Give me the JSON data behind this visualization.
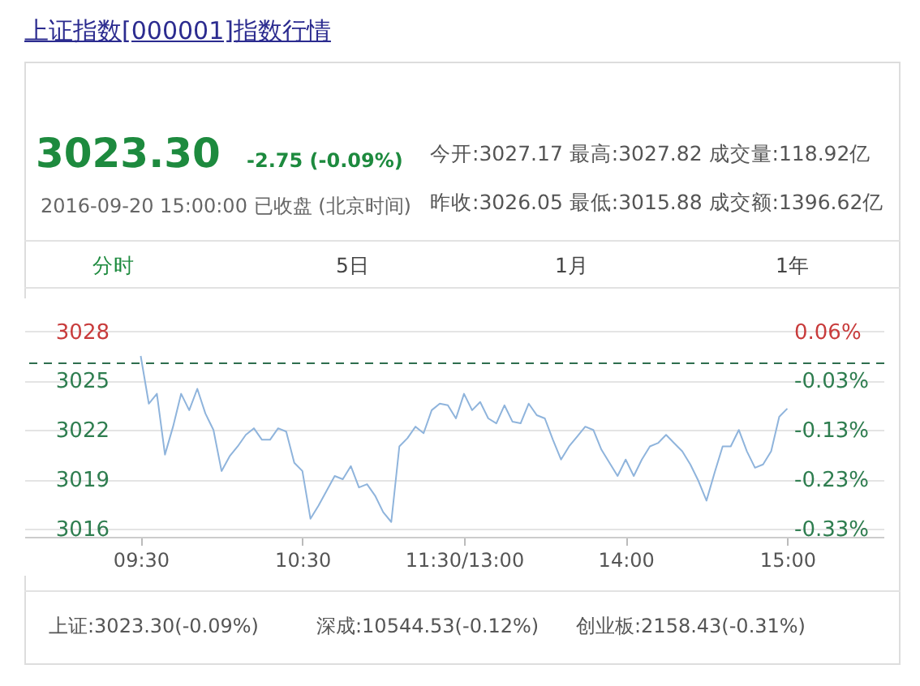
{
  "chart_data": {
    "type": "line",
    "title": "上证指数[000001]指数行情",
    "annotations": [
      "3023.30",
      "-2.75 (-0.09%)",
      "2016-09-20 15:00:00 已收盘 (北京时间)",
      "今开:3027.17  最高:3027.82  成交量:118.92亿",
      "昨收:3026.05  最低:3015.88  成交额:1396.62亿",
      "分时",
      "5日",
      "1月",
      "1年",
      "上证:3023.30(-0.09%)",
      "深成:10544.53(-0.12%)",
      "创业板:2158.43(-0.31%)"
    ],
    "categories": [
      "09:30",
      null,
      null,
      null,
      null,
      null,
      null,
      null,
      null,
      null,
      null,
      null,
      null,
      null,
      null,
      null,
      null,
      null,
      null,
      null,
      "10:30",
      null,
      null,
      null,
      null,
      null,
      null,
      null,
      null,
      null,
      null,
      null,
      null,
      null,
      null,
      null,
      null,
      null,
      null,
      null,
      "11:30/13:00",
      null,
      null,
      null,
      null,
      null,
      null,
      null,
      null,
      null,
      null,
      null,
      null,
      null,
      null,
      null,
      null,
      null,
      null,
      null,
      "14:00",
      null,
      null,
      null,
      null,
      null,
      null,
      null,
      null,
      null,
      null,
      null,
      null,
      null,
      null,
      null,
      null,
      null,
      null,
      null,
      "15:00"
    ],
    "series": [
      {
        "color": "#8fb4dc",
        "values": [
          3026.5,
          3023.6,
          3024.2,
          3020.5,
          3022.2,
          3024.2,
          3023.2,
          3024.5,
          3023.0,
          3022.0,
          3019.5,
          3020.4,
          3021.0,
          3021.7,
          3022.1,
          3021.4,
          3021.4,
          3022.1,
          3021.9,
          3020.0,
          3019.5,
          3016.6,
          3017.4,
          3018.3,
          3019.2,
          3019.0,
          3019.8,
          3018.5,
          3018.7,
          3018.0,
          3017.0,
          3016.4,
          3021.0,
          3021.5,
          3022.2,
          3021.8,
          3023.2,
          3023.6,
          3023.5,
          3022.7,
          3024.2,
          3023.2,
          3023.7,
          3022.7,
          3022.4,
          3023.5,
          3022.5,
          3022.4,
          3023.6,
          3022.9,
          3022.7,
          3021.4,
          3020.2,
          3021.0,
          3021.6,
          3022.2,
          3022.0,
          3020.8,
          3020.0,
          3019.2,
          3020.2,
          3019.2,
          3020.2,
          3021.0,
          3021.2,
          3021.7,
          3021.2,
          3020.7,
          3019.9,
          3018.9,
          3017.7,
          3019.4,
          3021.0,
          3021.0,
          3022.0,
          3020.7,
          3019.7,
          3019.9,
          3020.7,
          3022.8,
          3023.3
        ]
      }
    ],
    "ylim": [
      3015.5,
      3030
    ],
    "yticks": [
      3016,
      3019,
      3022,
      3025,
      3028
    ],
    "y2lim": [
      -0.3486,
      0.1305
    ],
    "y2ticks": [
      {
        "value": -0.3321,
        "label": "-0.33%"
      },
      {
        "value": -0.233,
        "label": "-0.23%"
      },
      {
        "value": -0.1338,
        "label": "-0.13%"
      },
      {
        "value": -0.0347,
        "label": "-0.03%"
      },
      {
        "value": 0.0644,
        "label": "0.06%"
      }
    ],
    "ref_lines": [
      {
        "axis": "y",
        "value": 3026.05,
        "color": "#2e6e4e",
        "line_style": "dashed"
      }
    ],
    "grid": "y",
    "marker": "none",
    "line_style": "solid"
  }
}
